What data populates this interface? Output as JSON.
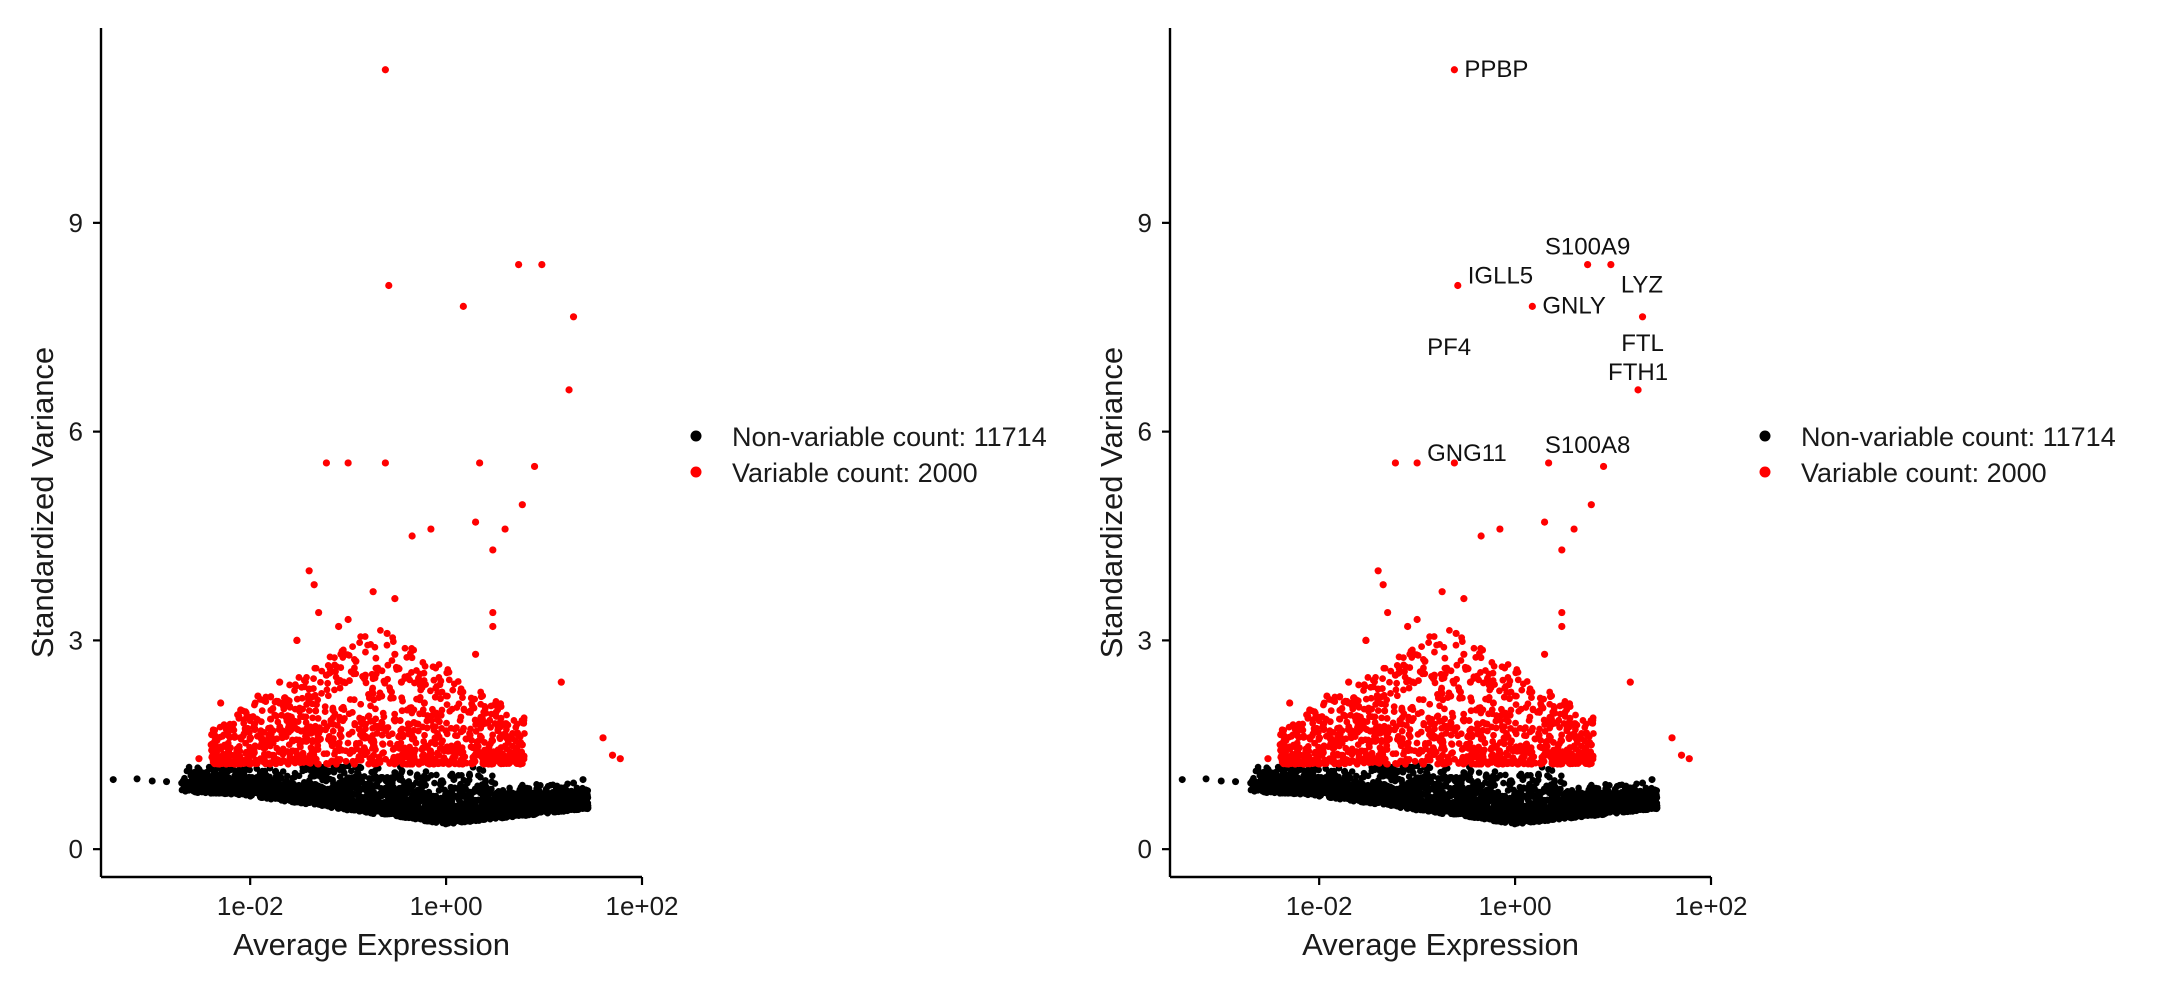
{
  "chart_data": [
    {
      "type": "scatter",
      "title": "",
      "xlabel": "Average Expression",
      "ylabel": "Standardized Variance",
      "x_scale": "log10",
      "xlim": [
        0.0003,
        100
      ],
      "ylim": [
        -0.4,
        11.8
      ],
      "x_ticks": [
        0.01,
        1,
        100
      ],
      "x_tick_labels": [
        "1e-02",
        "1e+00",
        "1e+02"
      ],
      "y_ticks": [
        0,
        3,
        6,
        9
      ],
      "y_tick_labels": [
        "0",
        "3",
        "6",
        "9"
      ],
      "legend": {
        "placement": "right",
        "entries": [
          {
            "label": "Non-variable count: 11714",
            "color": "#000000"
          },
          {
            "label": "Variable count: 2000",
            "color": "#ff0000"
          }
        ]
      },
      "series": [
        {
          "name": "Non-variable",
          "color": "#000000",
          "count": 11714,
          "x": [
            0.0004,
            0.0007,
            0.001,
            0.0014,
            0.002,
            0.003,
            0.004,
            0.006,
            0.008,
            0.01,
            0.014,
            0.02,
            0.03,
            0.05,
            0.08,
            0.12,
            0.2,
            0.3,
            0.5,
            0.7,
            1,
            1.5,
            2,
            3,
            5,
            7,
            10,
            15,
            20,
            25,
            0.05,
            0.1,
            0.3,
            0.6,
            1.2,
            2.5
          ],
          "y": [
            1.0,
            1.01,
            0.98,
            0.97,
            0.95,
            0.93,
            1.02,
            0.9,
            0.88,
            0.86,
            0.84,
            0.8,
            0.76,
            0.7,
            0.65,
            0.6,
            0.55,
            0.52,
            0.48,
            0.45,
            0.48,
            0.55,
            0.6,
            0.65,
            0.7,
            0.75,
            0.8,
            0.85,
            0.95,
            1.0,
            1.15,
            1.2,
            1.1,
            1.05,
            1.0,
            0.95
          ]
        },
        {
          "name": "Variable",
          "color": "#ff0000",
          "count": 2000,
          "x": [
            0.24,
            0.26,
            0.45,
            5.5,
            9.5,
            20,
            1.5,
            18,
            0.06,
            0.1,
            0.24,
            2.2,
            3,
            0.3,
            0.7,
            4,
            2,
            6,
            8,
            3,
            0.003,
            0.004,
            0.005,
            0.006,
            0.008,
            0.01,
            0.012,
            0.015,
            0.02,
            0.025,
            0.03,
            0.04,
            0.05,
            0.06,
            0.07,
            0.08,
            0.09,
            0.1,
            0.12,
            0.15,
            0.18,
            0.2,
            0.22,
            0.25,
            0.3,
            0.35,
            0.4,
            0.5,
            0.6,
            0.8,
            1,
            1.3,
            2,
            2.5,
            3,
            4,
            6,
            15,
            40,
            60,
            50,
            0.04,
            0.045,
            0.02,
            0.03
          ],
          "y": [
            11.2,
            8.1,
            4.5,
            8.4,
            8.4,
            7.65,
            7.8,
            6.6,
            5.55,
            5.55,
            5.55,
            5.55,
            4.3,
            3.6,
            4.6,
            4.6,
            4.7,
            4.95,
            5.5,
            3.4,
            1.3,
            1.5,
            2.1,
            1.4,
            2.0,
            1.6,
            2.2,
            1.5,
            2.4,
            1.8,
            3.0,
            2.3,
            3.4,
            2.5,
            2.0,
            3.2,
            2.4,
            3.3,
            2.7,
            2.5,
            3.7,
            2.6,
            2.2,
            3.1,
            2.8,
            2.4,
            2.0,
            1.8,
            2.1,
            1.6,
            1.7,
            1.5,
            2.8,
            1.4,
            3.2,
            1.8,
            1.5,
            2.4,
            1.6,
            1.3,
            1.35,
            4.0,
            3.8,
            2.1,
            3.0
          ]
        }
      ],
      "annotations": []
    },
    {
      "type": "scatter",
      "title": "",
      "xlabel": "Average Expression",
      "ylabel": "Standardized Variance",
      "x_scale": "log10",
      "xlim": [
        0.0003,
        100
      ],
      "ylim": [
        -0.4,
        11.8
      ],
      "x_ticks": [
        0.01,
        1,
        100
      ],
      "x_tick_labels": [
        "1e-02",
        "1e+00",
        "1e+02"
      ],
      "y_ticks": [
        0,
        3,
        6,
        9
      ],
      "y_tick_labels": [
        "0",
        "3",
        "6",
        "9"
      ],
      "legend": {
        "placement": "right",
        "entries": [
          {
            "label": "Non-variable count: 11714",
            "color": "#000000"
          },
          {
            "label": "Variable count: 2000",
            "color": "#ff0000"
          }
        ]
      },
      "series": [
        {
          "name": "Non-variable",
          "color": "#000000",
          "count": 11714,
          "x": [
            0.0004,
            0.0007,
            0.001,
            0.0014,
            0.002,
            0.003,
            0.004,
            0.006,
            0.008,
            0.01,
            0.014,
            0.02,
            0.03,
            0.05,
            0.08,
            0.12,
            0.2,
            0.3,
            0.5,
            0.7,
            1,
            1.5,
            2,
            3,
            5,
            7,
            10,
            15,
            20,
            25,
            0.05,
            0.1,
            0.3,
            0.6,
            1.2,
            2.5
          ],
          "y": [
            1.0,
            1.01,
            0.98,
            0.97,
            0.95,
            0.93,
            1.02,
            0.9,
            0.88,
            0.86,
            0.84,
            0.8,
            0.76,
            0.7,
            0.65,
            0.6,
            0.55,
            0.52,
            0.48,
            0.45,
            0.48,
            0.55,
            0.6,
            0.65,
            0.7,
            0.75,
            0.8,
            0.85,
            0.95,
            1.0,
            1.15,
            1.2,
            1.1,
            1.05,
            1.0,
            0.95
          ]
        },
        {
          "name": "Variable",
          "color": "#ff0000",
          "count": 2000,
          "x": [
            0.24,
            0.26,
            0.45,
            5.5,
            9.5,
            20,
            1.5,
            18,
            0.06,
            0.1,
            0.24,
            2.2,
            3,
            0.3,
            0.7,
            4,
            2,
            6,
            8,
            3,
            0.003,
            0.004,
            0.005,
            0.006,
            0.008,
            0.01,
            0.012,
            0.015,
            0.02,
            0.025,
            0.03,
            0.04,
            0.05,
            0.06,
            0.07,
            0.08,
            0.09,
            0.1,
            0.12,
            0.15,
            0.18,
            0.2,
            0.22,
            0.25,
            0.3,
            0.35,
            0.4,
            0.5,
            0.6,
            0.8,
            1,
            1.3,
            2,
            2.5,
            3,
            4,
            6,
            15,
            40,
            60,
            50,
            0.04,
            0.045,
            0.02,
            0.03
          ],
          "y": [
            11.2,
            8.1,
            4.5,
            8.4,
            8.4,
            7.65,
            7.8,
            6.6,
            5.55,
            5.55,
            5.55,
            5.55,
            4.3,
            3.6,
            4.6,
            4.6,
            4.7,
            4.95,
            5.5,
            3.4,
            1.3,
            1.5,
            2.1,
            1.4,
            2.0,
            1.6,
            2.2,
            1.5,
            2.4,
            1.8,
            3.0,
            2.3,
            3.4,
            2.5,
            2.0,
            3.2,
            2.4,
            3.3,
            2.7,
            2.5,
            3.7,
            2.6,
            2.2,
            3.1,
            2.8,
            2.4,
            2.0,
            1.8,
            2.1,
            1.6,
            1.7,
            1.5,
            2.8,
            1.4,
            3.2,
            1.8,
            1.5,
            2.4,
            1.6,
            1.3,
            1.35,
            4.0,
            3.8,
            2.1,
            3.0
          ]
        }
      ],
      "annotations": [
        {
          "label": "PPBP",
          "x": 0.24,
          "y": 11.2,
          "anchor": "right"
        },
        {
          "label": "S100A9",
          "x": 5.5,
          "y": 8.4,
          "anchor": "top"
        },
        {
          "label": "IGLL5",
          "x": 0.26,
          "y": 8.1,
          "anchor": "top-right"
        },
        {
          "label": "LYZ",
          "x": 9.5,
          "y": 8.4,
          "anchor": "bottom-right"
        },
        {
          "label": "GNLY",
          "x": 1.5,
          "y": 7.8,
          "anchor": "right"
        },
        {
          "label": "FTL",
          "x": 20,
          "y": 7.65,
          "anchor": "bottom"
        },
        {
          "label": "PF4",
          "x": 0.1,
          "y": 7.2,
          "anchor": "right"
        },
        {
          "label": "FTH1",
          "x": 18,
          "y": 6.6,
          "anchor": "top"
        },
        {
          "label": "GNG11",
          "x": 0.1,
          "y": 5.55,
          "anchor": "top-right"
        },
        {
          "label": "S100A8",
          "x": 5.5,
          "y": 5.55,
          "anchor": "top"
        }
      ]
    }
  ]
}
